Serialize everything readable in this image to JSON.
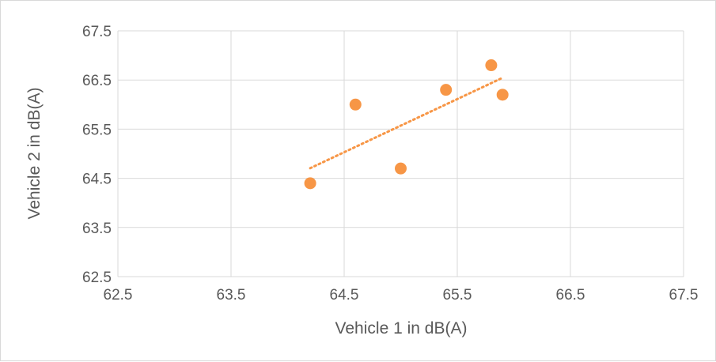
{
  "chart_data": {
    "type": "scatter",
    "xlabel": "Vehicle 1 in dB(A)",
    "ylabel": "Vehicle 2 in dB(A)",
    "xlim": [
      62.5,
      67.5
    ],
    "ylim": [
      62.5,
      67.5
    ],
    "xticks": [
      "62.5",
      "63.5",
      "64.5",
      "65.5",
      "66.5",
      "67.5"
    ],
    "yticks": [
      "62.5",
      "63.5",
      "64.5",
      "65.5",
      "66.5",
      "67.5"
    ],
    "grid": true,
    "legend": "none",
    "series": [
      {
        "points": [
          {
            "x": 64.2,
            "y": 64.4
          },
          {
            "x": 64.6,
            "y": 66.0
          },
          {
            "x": 65.0,
            "y": 64.7
          },
          {
            "x": 65.4,
            "y": 66.3
          },
          {
            "x": 65.8,
            "y": 66.8
          },
          {
            "x": 65.9,
            "y": 66.2
          }
        ],
        "color": "#F79646",
        "trendline": {
          "type": "linear",
          "style": "dotted"
        }
      }
    ]
  }
}
